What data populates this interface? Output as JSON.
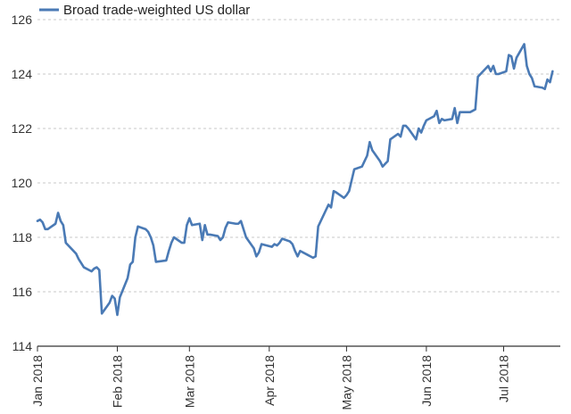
{
  "chart_data": {
    "type": "line",
    "title": "",
    "xlabel": "",
    "ylabel": "",
    "ylim": [
      114,
      126
    ],
    "grid": "horizontal",
    "legend_position": "top-left",
    "y_ticks": [
      114,
      116,
      118,
      120,
      122,
      124,
      126
    ],
    "x_ticks": [
      {
        "label": "Jan 2018",
        "date": "2018-01-01"
      },
      {
        "label": "Feb 2018",
        "date": "2018-02-01"
      },
      {
        "label": "Mar 2018",
        "date": "2018-03-01"
      },
      {
        "label": "Apr 2018",
        "date": "2018-04-01"
      },
      {
        "label": "May 2018",
        "date": "2018-05-01"
      },
      {
        "label": "Jun 2018",
        "date": "2018-06-01"
      },
      {
        "label": "Jul 2018",
        "date": "2018-07-01"
      }
    ],
    "series": [
      {
        "name": "Broad trade-weighted US dollar",
        "color": "#4a7ab5",
        "points": [
          [
            "2018-01-01",
            118.6
          ],
          [
            "2018-01-02",
            118.65
          ],
          [
            "2018-01-03",
            118.55
          ],
          [
            "2018-01-04",
            118.3
          ],
          [
            "2018-01-05",
            118.3
          ],
          [
            "2018-01-08",
            118.5
          ],
          [
            "2018-01-09",
            118.9
          ],
          [
            "2018-01-10",
            118.6
          ],
          [
            "2018-01-11",
            118.45
          ],
          [
            "2018-01-12",
            117.8
          ],
          [
            "2018-01-16",
            117.4
          ],
          [
            "2018-01-17",
            117.2
          ],
          [
            "2018-01-18",
            117.05
          ],
          [
            "2018-01-19",
            116.9
          ],
          [
            "2018-01-22",
            116.75
          ],
          [
            "2018-01-23",
            116.85
          ],
          [
            "2018-01-24",
            116.9
          ],
          [
            "2018-01-25",
            116.8
          ],
          [
            "2018-01-26",
            115.2
          ],
          [
            "2018-01-29",
            115.6
          ],
          [
            "2018-01-30",
            115.85
          ],
          [
            "2018-01-31",
            115.75
          ],
          [
            "2018-02-01",
            115.15
          ],
          [
            "2018-02-02",
            115.8
          ],
          [
            "2018-02-05",
            116.5
          ],
          [
            "2018-02-06",
            117.0
          ],
          [
            "2018-02-07",
            117.1
          ],
          [
            "2018-02-08",
            118.0
          ],
          [
            "2018-02-09",
            118.4
          ],
          [
            "2018-02-12",
            118.3
          ],
          [
            "2018-02-13",
            118.2
          ],
          [
            "2018-02-14",
            118.0
          ],
          [
            "2018-02-15",
            117.7
          ],
          [
            "2018-02-16",
            117.1
          ],
          [
            "2018-02-20",
            117.15
          ],
          [
            "2018-02-21",
            117.5
          ],
          [
            "2018-02-22",
            117.8
          ],
          [
            "2018-02-23",
            118.0
          ],
          [
            "2018-02-26",
            117.8
          ],
          [
            "2018-02-27",
            117.8
          ],
          [
            "2018-02-28",
            118.45
          ],
          [
            "2018-03-01",
            118.7
          ],
          [
            "2018-03-02",
            118.45
          ],
          [
            "2018-03-05",
            118.5
          ],
          [
            "2018-03-06",
            117.9
          ],
          [
            "2018-03-07",
            118.45
          ],
          [
            "2018-03-08",
            118.1
          ],
          [
            "2018-03-09",
            118.1
          ],
          [
            "2018-03-12",
            118.05
          ],
          [
            "2018-03-13",
            117.9
          ],
          [
            "2018-03-14",
            118.0
          ],
          [
            "2018-03-15",
            118.35
          ],
          [
            "2018-03-16",
            118.55
          ],
          [
            "2018-03-19",
            118.5
          ],
          [
            "2018-03-20",
            118.5
          ],
          [
            "2018-03-21",
            118.6
          ],
          [
            "2018-03-22",
            118.3
          ],
          [
            "2018-03-23",
            118.0
          ],
          [
            "2018-03-26",
            117.6
          ],
          [
            "2018-03-27",
            117.3
          ],
          [
            "2018-03-28",
            117.45
          ],
          [
            "2018-03-29",
            117.75
          ],
          [
            "2018-04-02",
            117.65
          ],
          [
            "2018-04-03",
            117.75
          ],
          [
            "2018-04-04",
            117.7
          ],
          [
            "2018-04-05",
            117.8
          ],
          [
            "2018-04-06",
            117.95
          ],
          [
            "2018-04-09",
            117.85
          ],
          [
            "2018-04-10",
            117.75
          ],
          [
            "2018-04-11",
            117.5
          ],
          [
            "2018-04-12",
            117.3
          ],
          [
            "2018-04-13",
            117.5
          ],
          [
            "2018-04-16",
            117.35
          ],
          [
            "2018-04-17",
            117.3
          ],
          [
            "2018-04-18",
            117.25
          ],
          [
            "2018-04-19",
            117.3
          ],
          [
            "2018-04-20",
            118.4
          ],
          [
            "2018-04-23",
            119.0
          ],
          [
            "2018-04-24",
            119.2
          ],
          [
            "2018-04-25",
            119.1
          ],
          [
            "2018-04-26",
            119.7
          ],
          [
            "2018-04-27",
            119.65
          ],
          [
            "2018-04-30",
            119.45
          ],
          [
            "2018-05-01",
            119.55
          ],
          [
            "2018-05-02",
            119.7
          ],
          [
            "2018-05-03",
            120.1
          ],
          [
            "2018-05-04",
            120.5
          ],
          [
            "2018-05-07",
            120.6
          ],
          [
            "2018-05-08",
            120.8
          ],
          [
            "2018-05-09",
            121.0
          ],
          [
            "2018-05-10",
            121.5
          ],
          [
            "2018-05-11",
            121.2
          ],
          [
            "2018-05-14",
            120.8
          ],
          [
            "2018-05-15",
            120.6
          ],
          [
            "2018-05-16",
            120.7
          ],
          [
            "2018-05-17",
            120.8
          ],
          [
            "2018-05-18",
            121.6
          ],
          [
            "2018-05-21",
            121.8
          ],
          [
            "2018-05-22",
            121.7
          ],
          [
            "2018-05-23",
            122.1
          ],
          [
            "2018-05-24",
            122.1
          ],
          [
            "2018-05-25",
            122.0
          ],
          [
            "2018-05-28",
            121.6
          ],
          [
            "2018-05-29",
            122.0
          ],
          [
            "2018-05-30",
            121.85
          ],
          [
            "2018-05-31",
            122.1
          ],
          [
            "2018-06-01",
            122.3
          ],
          [
            "2018-06-04",
            122.45
          ],
          [
            "2018-06-05",
            122.65
          ],
          [
            "2018-06-06",
            122.2
          ],
          [
            "2018-06-07",
            122.35
          ],
          [
            "2018-06-08",
            122.3
          ],
          [
            "2018-06-11",
            122.35
          ],
          [
            "2018-06-12",
            122.75
          ],
          [
            "2018-06-13",
            122.2
          ],
          [
            "2018-06-14",
            122.6
          ],
          [
            "2018-06-15",
            122.6
          ],
          [
            "2018-06-18",
            122.6
          ],
          [
            "2018-06-19",
            122.65
          ],
          [
            "2018-06-20",
            122.7
          ],
          [
            "2018-06-21",
            123.9
          ],
          [
            "2018-06-22",
            124.0
          ],
          [
            "2018-06-25",
            124.3
          ],
          [
            "2018-06-26",
            124.1
          ],
          [
            "2018-06-27",
            124.3
          ],
          [
            "2018-06-28",
            124.0
          ],
          [
            "2018-06-29",
            124.0
          ],
          [
            "2018-07-02",
            124.1
          ],
          [
            "2018-07-03",
            124.7
          ],
          [
            "2018-07-04",
            124.65
          ],
          [
            "2018-07-05",
            124.2
          ],
          [
            "2018-07-06",
            124.6
          ],
          [
            "2018-07-09",
            125.1
          ],
          [
            "2018-07-10",
            124.3
          ],
          [
            "2018-07-11",
            124.0
          ],
          [
            "2018-07-12",
            123.85
          ],
          [
            "2018-07-13",
            123.55
          ],
          [
            "2018-07-16",
            123.5
          ],
          [
            "2018-07-17",
            123.45
          ],
          [
            "2018-07-18",
            123.8
          ],
          [
            "2018-07-19",
            123.7
          ],
          [
            "2018-07-20",
            124.1
          ]
        ]
      }
    ]
  }
}
